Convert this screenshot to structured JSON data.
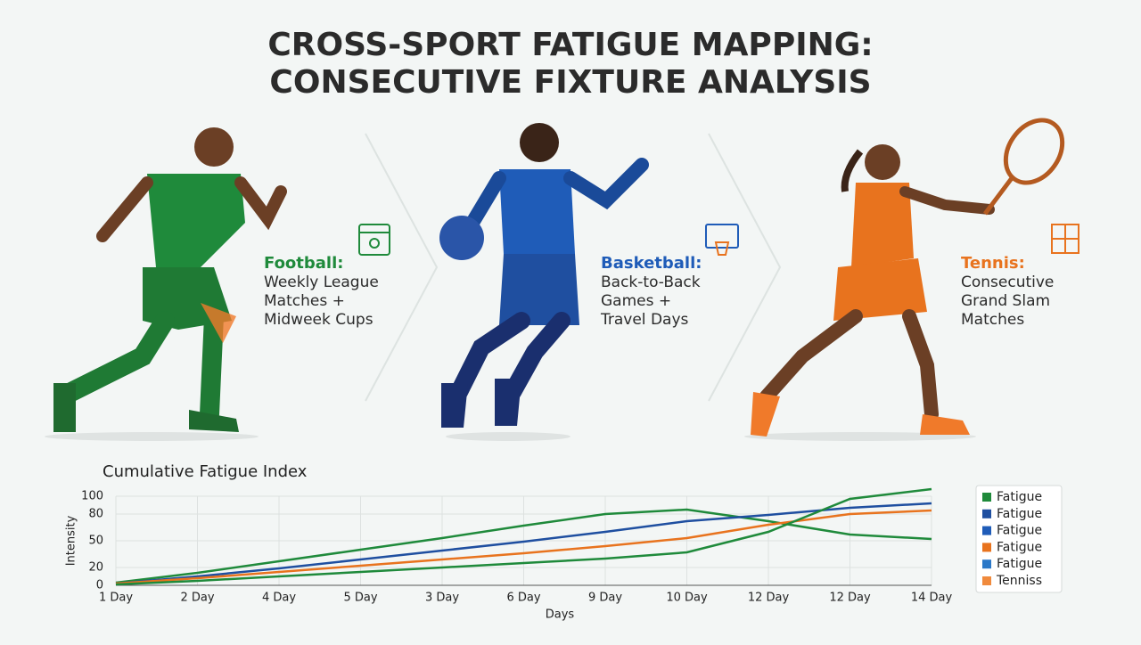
{
  "header": {
    "title": [
      "CROSS-SPORT FATIGUE MAPPING:",
      "CONSECUTIVE FIXTURE ANALYSIS"
    ]
  },
  "panels": [
    {
      "sport": "Football:",
      "color": "#1f8a3b",
      "description": [
        "Weekly League",
        "Matches +",
        "Midweek Cups"
      ]
    },
    {
      "sport": "Basketball:",
      "color": "#1f5cb8",
      "description": [
        "Back-to-Back",
        "Games +",
        "Travel Days"
      ]
    },
    {
      "sport": "Tennis:",
      "color": "#e8731e",
      "description": [
        "Consecutive",
        "Grand Slam",
        "Matches"
      ]
    }
  ],
  "chart_data": {
    "type": "line",
    "title": "Cumulative Fatigue Index",
    "x_label": "Days",
    "y_label": "Intensity",
    "categories": [
      "1 Day",
      "2 Day",
      "4 Day",
      "5 Day",
      "3 Day",
      "6 Day",
      "9 Day",
      "10 Day",
      "12 Day",
      "12 Day",
      "14 Day"
    ],
    "ylim": [
      0,
      100
    ],
    "yticks": [
      0,
      20,
      50,
      80,
      100
    ],
    "grid": true,
    "series": [
      {
        "color": "#1f8a3b",
        "values": [
          3,
          14,
          27,
          40,
          53,
          67,
          80,
          85,
          72,
          57,
          52
        ]
      },
      {
        "color": "#1f4fa0",
        "values": [
          2,
          10,
          19,
          29,
          39,
          49,
          60,
          72,
          79,
          87,
          92
        ]
      },
      {
        "color": "#e8731e",
        "values": [
          2,
          8,
          15,
          22,
          29,
          36,
          44,
          53,
          68,
          80,
          84
        ]
      },
      {
        "color": "#1f8a3b",
        "values": [
          1,
          5,
          10,
          15,
          20,
          25,
          30,
          37,
          60,
          97,
          108
        ]
      }
    ],
    "legend": {
      "position": "right",
      "entries": [
        {
          "label": "Fatigue",
          "color": "#1f8a3b"
        },
        {
          "label": "Fatigue",
          "color": "#1f4fa0"
        },
        {
          "label": "Fatigue",
          "color": "#1f5cb8"
        },
        {
          "label": "Fatigue",
          "color": "#e8731e"
        },
        {
          "label": "Fatigue",
          "color": "#2b78c8"
        },
        {
          "label": "Tenniss",
          "color": "#f08a3c"
        }
      ]
    }
  }
}
